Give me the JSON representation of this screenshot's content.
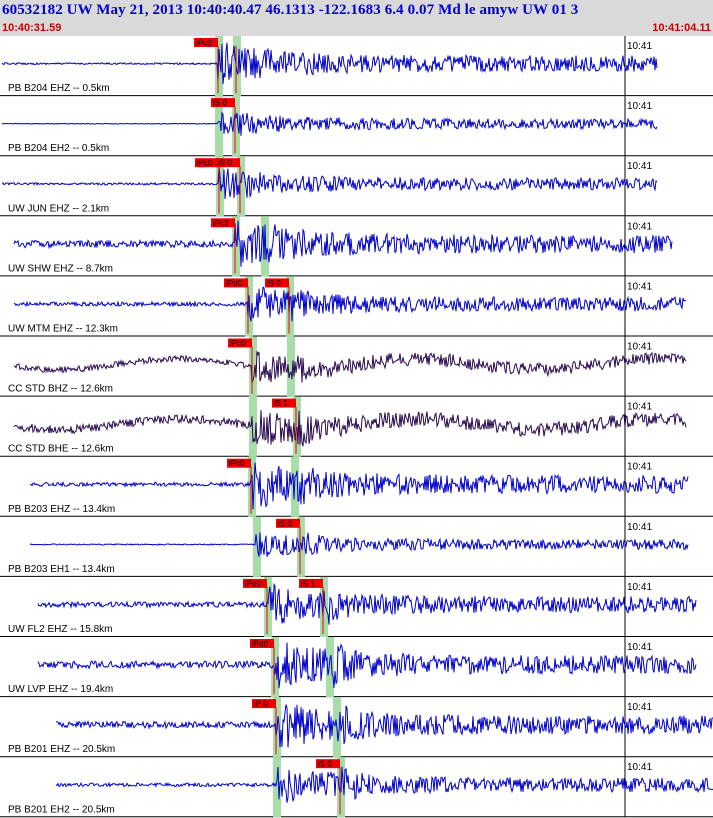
{
  "header": {
    "title": "60532182 UW May 21, 2013 10:40:40.47   46.1313 -122.1683  6.4 0.07 Md le amyw UW 01   3",
    "start_time": "10:40:31.59",
    "end_time": "10:41:04.11"
  },
  "colors": {
    "trace": "#0000cc",
    "trace_broadband": "#2a0a50",
    "pick": "#ee0000",
    "window": "#a8dca8",
    "header_bg": "#d9d9d9"
  },
  "chart_data": {
    "type": "line",
    "title": "60532182 UW May 21, 2013 10:40:40.47   46.1313 -122.1683  6.4 0.07 Md le amyw UW 01   3",
    "x_range": [
      "10:40:31.59",
      "10:41:04.11"
    ],
    "minute_tick": "10:41",
    "series": [
      {
        "label": "PB B204 EHZ -- 0.5km",
        "picks": [
          "iPc0",
          ""
        ],
        "amp": 0.8,
        "tail": 0.15,
        "onset": 0.28
      },
      {
        "label": "PB B204 EH2 -- 0.5km",
        "picks": [
          "iS 0"
        ],
        "amp": 0.5,
        "tail": 0.1,
        "onset": 0.29
      },
      {
        "label": "UW JUN EHZ -- 2.1km",
        "picks": [
          "iPc0",
          "iS 0"
        ],
        "amp": 0.6,
        "tail": 0.25,
        "onset": 0.3
      },
      {
        "label": "UW SHW EHZ -- 8.7km",
        "picks": [
          "iPc2"
        ],
        "amp": 0.9,
        "tail": 0.55,
        "onset": 0.32
      },
      {
        "label": "UW MTM EHZ -- 12.3km",
        "picks": [
          "iPd0",
          "iS 0"
        ],
        "amp": 0.7,
        "tail": 0.4,
        "onset": 0.34
      },
      {
        "label": "CC STD BHZ -- 12.6km",
        "picks": [
          "iPc0"
        ],
        "amp": 0.6,
        "tail": 0.5,
        "onset": 0.36
      },
      {
        "label": "CC STD BHE -- 12.6km",
        "picks": [
          "iS 1"
        ],
        "amp": 0.7,
        "tail": 0.6,
        "onset": 0.38
      },
      {
        "label": "PB B203 EHZ -- 13.4km",
        "picks": [
          "iPc0"
        ],
        "amp": 0.9,
        "tail": 0.3,
        "onset": 0.36
      },
      {
        "label": "PB B203 EH1 -- 13.4km",
        "picks": [
          "iS 0"
        ],
        "amp": 0.5,
        "tail": 0.15,
        "onset": 0.42
      },
      {
        "label": "UW FL2 EHZ -- 15.8km",
        "picks": [
          "iPd0",
          "iS 1"
        ],
        "amp": 0.8,
        "tail": 0.45,
        "onset": 0.34
      },
      {
        "label": "UW LVP EHZ -- 19.4km",
        "picks": [
          "iPd0"
        ],
        "amp": 0.9,
        "tail": 0.55,
        "onset": 0.36
      },
      {
        "label": "PB B201 EHZ -- 20.5km",
        "picks": [
          "iP 0"
        ],
        "amp": 0.9,
        "tail": 0.5,
        "onset": 0.38
      },
      {
        "label": "PB B201 EH2 -- 20.5km",
        "picks": [
          "iS 0"
        ],
        "amp": 0.7,
        "tail": 0.35,
        "onset": 0.48
      }
    ]
  }
}
